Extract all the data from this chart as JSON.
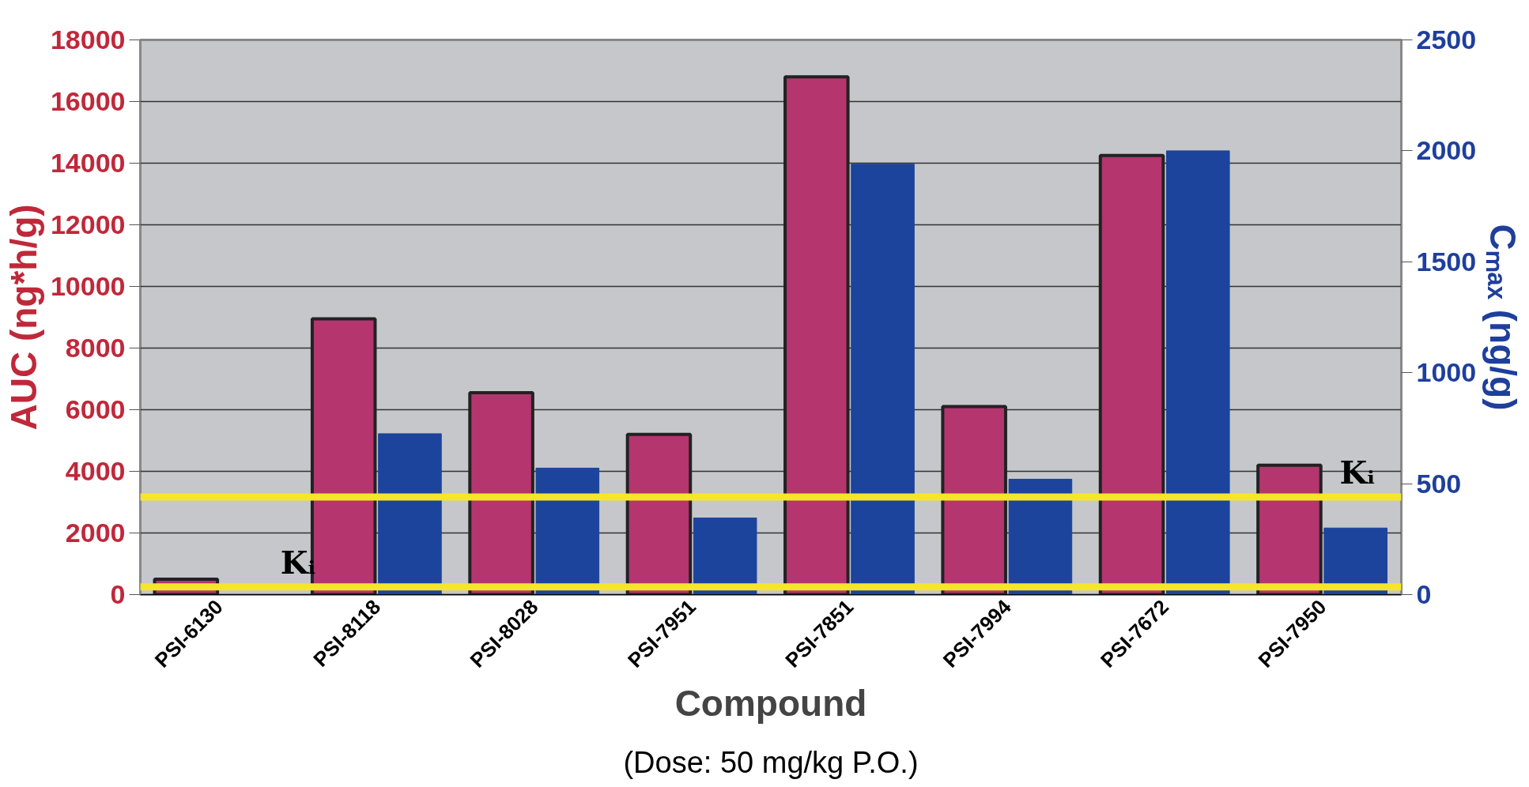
{
  "chart_data": {
    "type": "bar",
    "categories": [
      "PSI-6130",
      "PSI-8118",
      "PSI-8028",
      "PSI-7951",
      "PSI-7851",
      "PSI-7994",
      "PSI-7672",
      "PSI-7950"
    ],
    "series": [
      {
        "color": "#b5356f",
        "values": [
          500,
          8950,
          6550,
          5200,
          16800,
          6100,
          14250,
          4200
        ]
      },
      {
        "color": "#1c449c",
        "axis": "y2",
        "values": [
          null,
          725,
          570,
          345,
          1940,
          520,
          2000,
          300
        ]
      }
    ],
    "xlabel": "Compound",
    "ylabel": "AUC (ng*h/g)",
    "y2label": "Cₘₐₓ (ng/g)",
    "annotations": [
      "(Dose: 50 mg/kg P.O.)"
    ],
    "ylim": [
      0,
      18000
    ],
    "yticks": [
      0,
      2000,
      4000,
      6000,
      8000,
      10000,
      12000,
      14000,
      16000,
      18000
    ],
    "y2lim": [
      0,
      2500
    ],
    "y2ticks": [
      0,
      500,
      1000,
      1500,
      2000,
      2500
    ],
    "ref_lines": [
      {
        "axis": "y2",
        "value": 35,
        "label": "Kᵢ",
        "color": "#f5e62a"
      },
      {
        "axis": "y2",
        "value": 440,
        "label": "Kᵢ",
        "color": "#f5e62a"
      }
    ],
    "grid": "y"
  }
}
